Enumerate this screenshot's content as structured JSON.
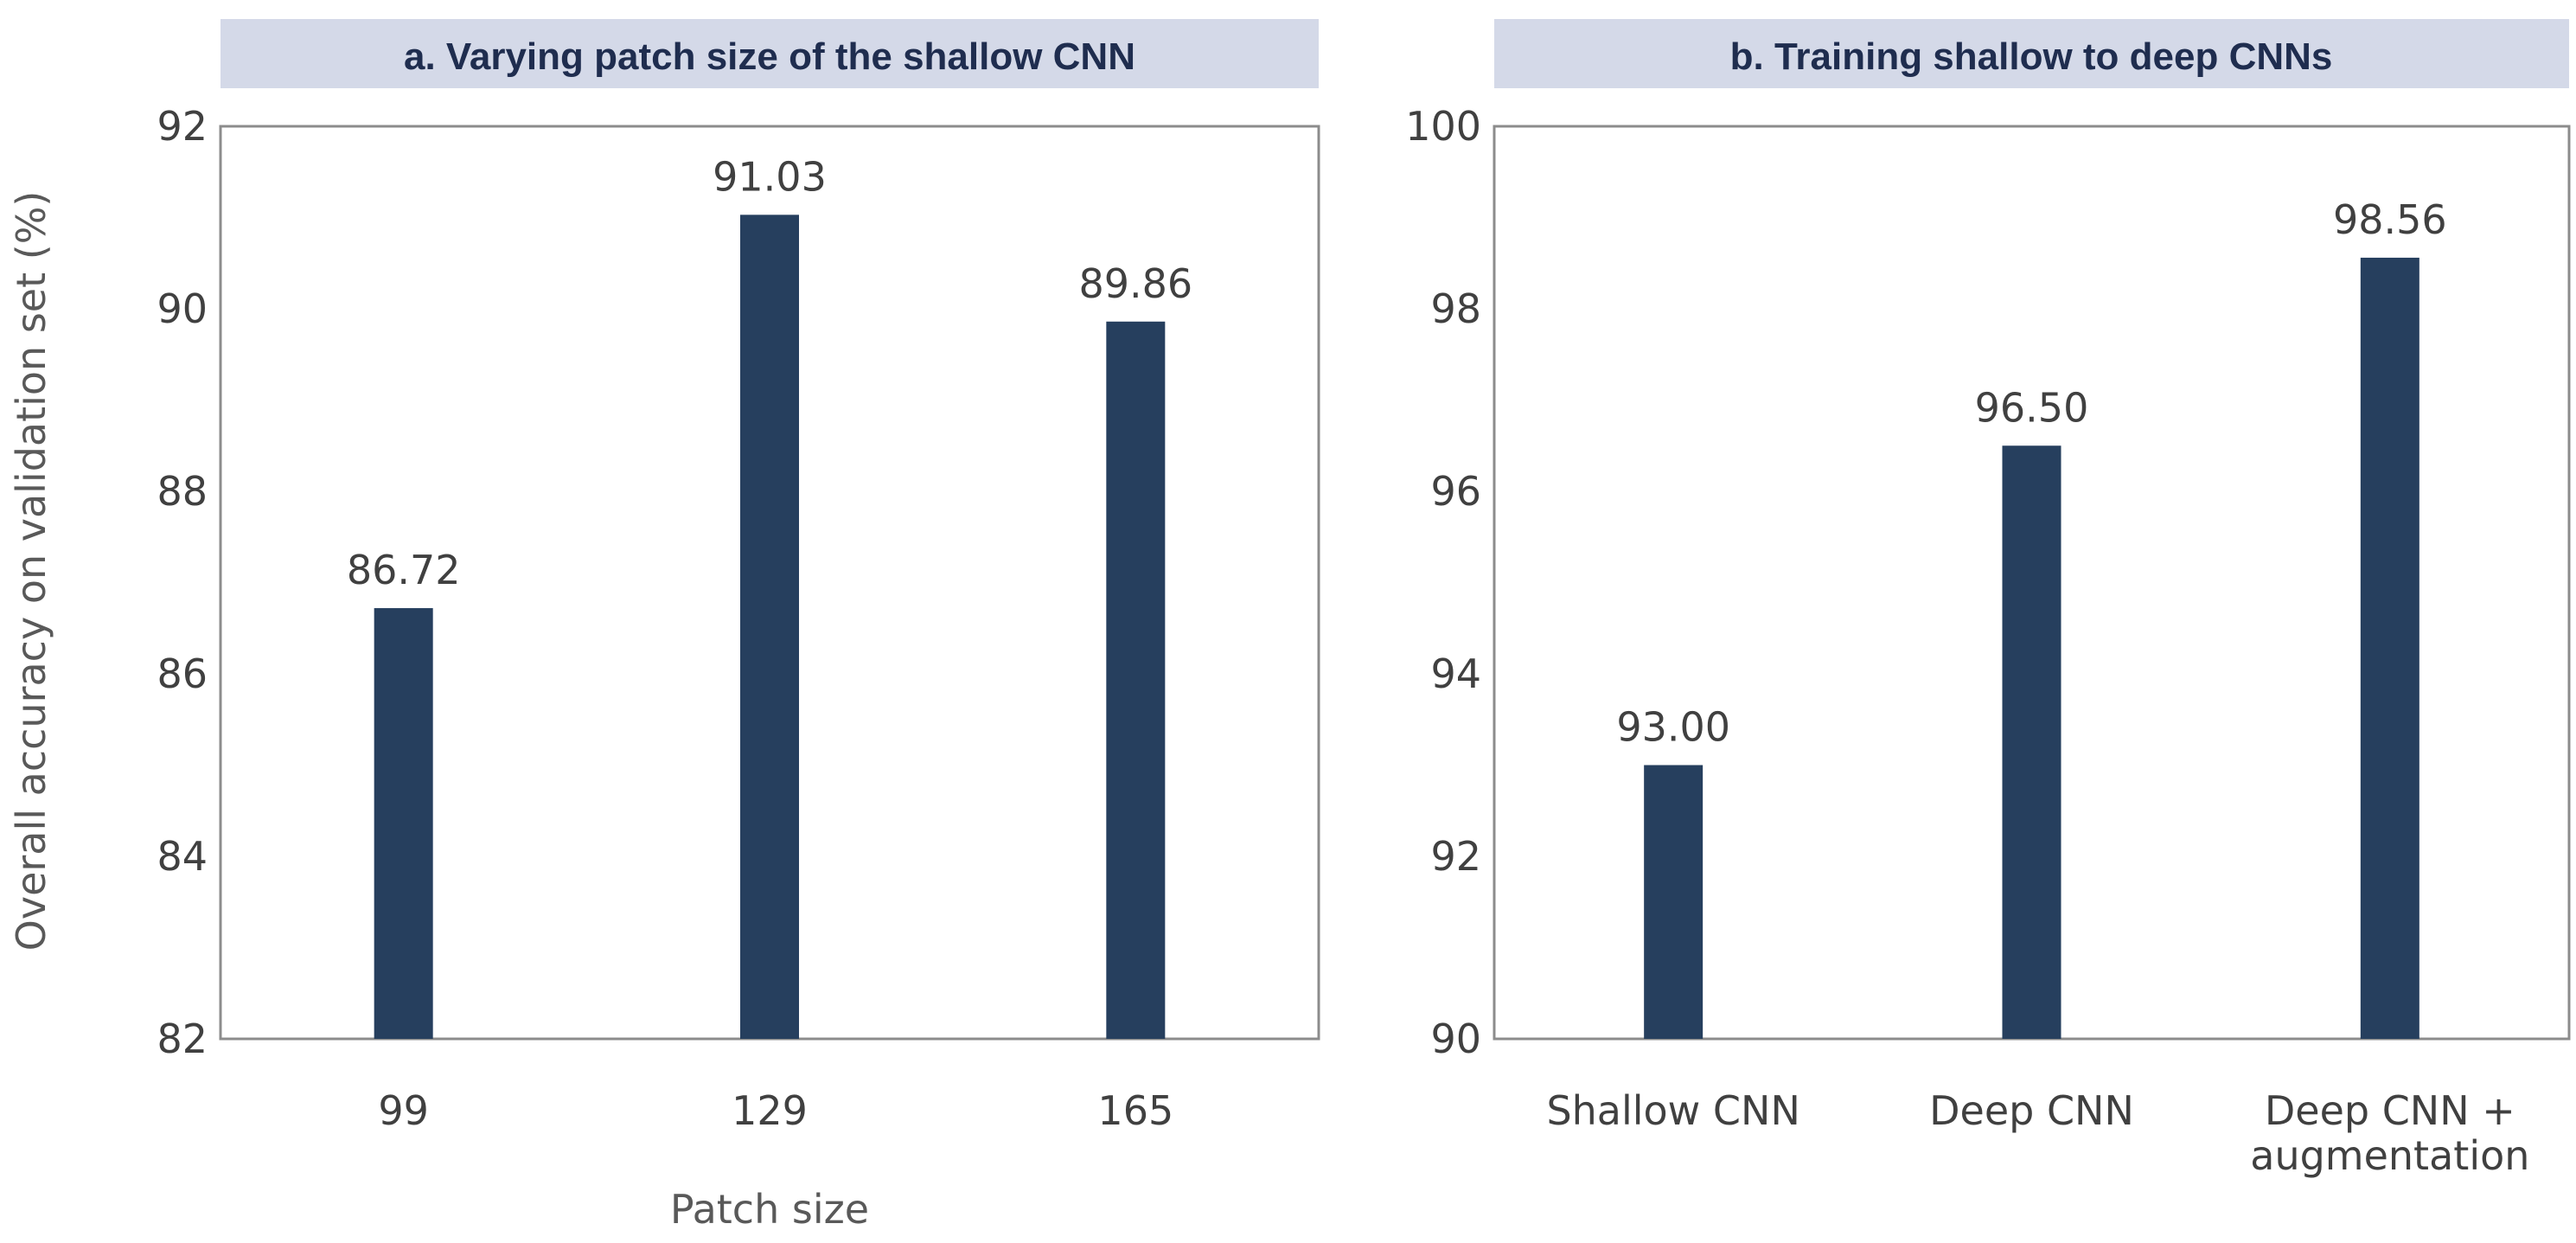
{
  "figure": {
    "ylabel": "Overall accuracy on validation set (%)"
  },
  "chart_data": [
    {
      "type": "bar",
      "title": "a. Varying patch size of the shallow CNN",
      "xlabel": "Patch size",
      "ylabel": "Overall accuracy on validation set (%)",
      "categories": [
        "99",
        "129",
        "165"
      ],
      "values": [
        86.72,
        91.03,
        89.86
      ],
      "data_labels": [
        "86.72",
        "91.03",
        "89.86"
      ],
      "ylim": [
        82,
        92
      ],
      "yticks": [
        82,
        84,
        86,
        88,
        90,
        92
      ],
      "grid": false,
      "bar_color": "#263F5E"
    },
    {
      "type": "bar",
      "title": "b. Training shallow to deep CNNs",
      "xlabel": "",
      "ylabel": "",
      "categories": [
        "Shallow CNN",
        "Deep CNN",
        "Deep CNN + augmentation"
      ],
      "category_lines": [
        [
          "Shallow CNN"
        ],
        [
          "Deep CNN"
        ],
        [
          "Deep CNN +",
          "augmentation"
        ]
      ],
      "values": [
        93.0,
        96.5,
        98.56
      ],
      "data_labels": [
        "93.00",
        "96.50",
        "98.56"
      ],
      "ylim": [
        90,
        100
      ],
      "yticks": [
        90,
        92,
        94,
        96,
        98,
        100
      ],
      "grid": false,
      "bar_color": "#263F5E"
    }
  ],
  "colors": {
    "bar": "#263F5E",
    "title_bg": "#D4D9E8",
    "title_text": "#1F2D4F",
    "axis": "#8C8C8C",
    "tick_text": "#404040",
    "label_text": "#595959"
  }
}
